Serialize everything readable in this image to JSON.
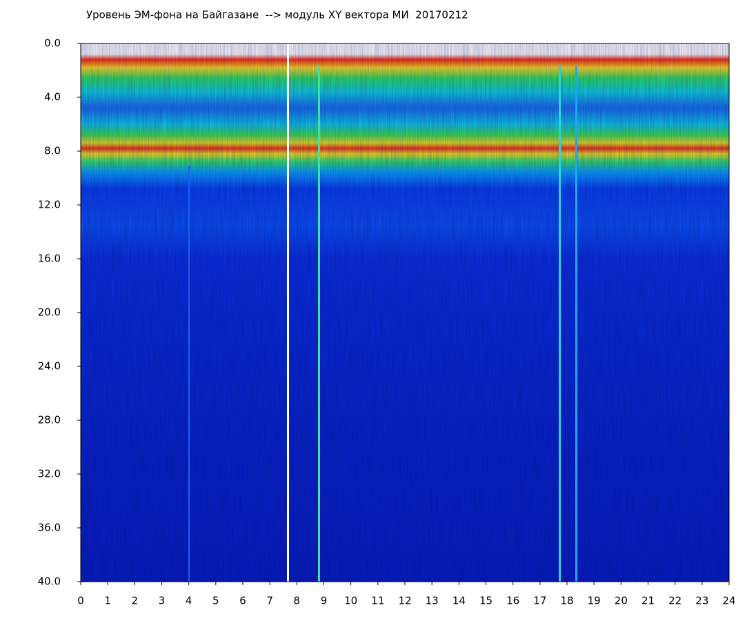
{
  "chart_data": {
    "type": "heatmap",
    "title": "Уровень ЭМ-фона на Байгазане  --> модуль XY вектора МИ  20170212",
    "xlim": [
      0,
      24
    ],
    "xticks": [
      0,
      1,
      2,
      3,
      4,
      5,
      6,
      7,
      8,
      9,
      10,
      11,
      12,
      13,
      14,
      15,
      16,
      17,
      18,
      19,
      20,
      21,
      22,
      23,
      24
    ],
    "ylim": [
      0,
      40
    ],
    "yticks": [
      {
        "value": 0,
        "label": "0.0"
      },
      {
        "value": 4,
        "label": "4.0"
      },
      {
        "value": 8,
        "label": "8.0"
      },
      {
        "value": 12,
        "label": "12.0"
      },
      {
        "value": 16,
        "label": "16.0"
      },
      {
        "value": 20,
        "label": "20.0"
      },
      {
        "value": 24,
        "label": "24.0"
      },
      {
        "value": 28,
        "label": "28.0"
      },
      {
        "value": 32,
        "label": "32.0"
      },
      {
        "value": 36,
        "label": "36.0"
      },
      {
        "value": 40,
        "label": "40.0"
      }
    ]
  }
}
